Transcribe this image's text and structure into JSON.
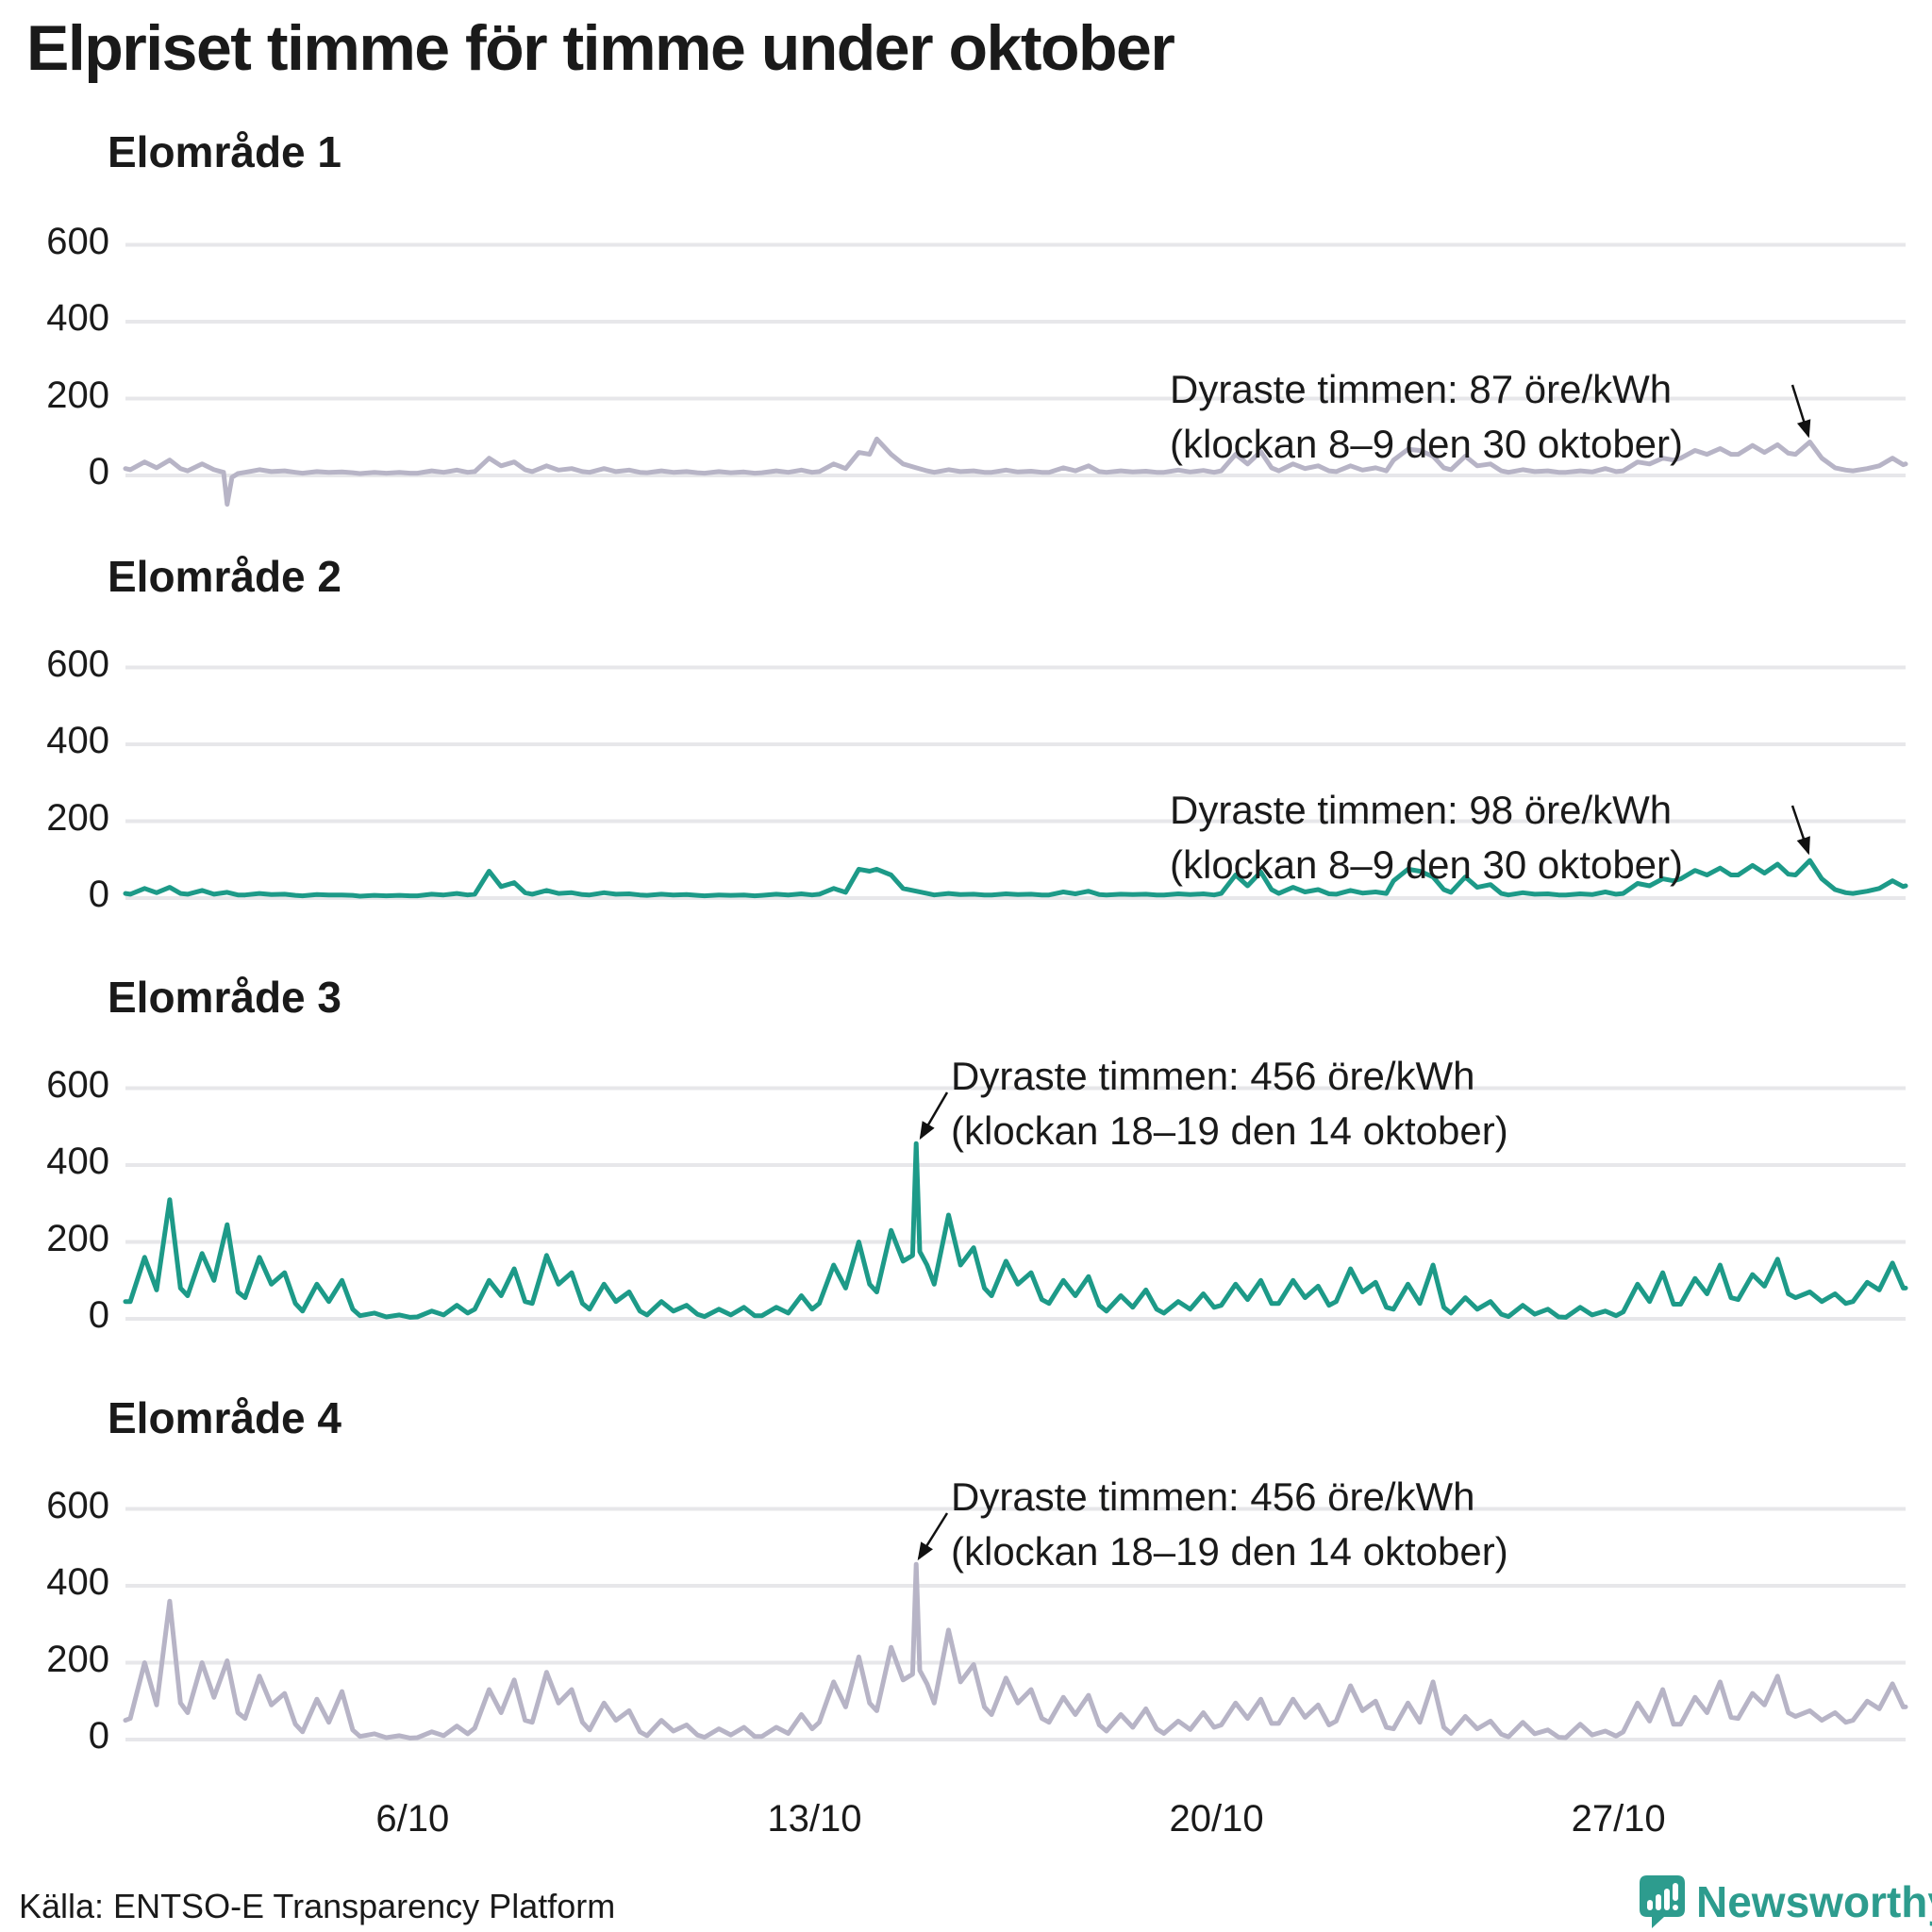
{
  "title": "Elpriset timme för timme under oktober",
  "source": "Källa: ENTSO-E Transparency Platform",
  "logo": {
    "text": "Newsworthy",
    "color": "#2d9c8e",
    "icon": "speech-bubble-bar-chart-icon"
  },
  "colors": {
    "teal_line": "#1d9a88",
    "gray_line": "#b7b4c6",
    "grid": "#e7e7ea",
    "text": "#1a1a1a",
    "arrow": "#111111"
  },
  "y_axis": {
    "ticks": [
      0,
      200,
      400,
      600
    ],
    "tick_labels": [
      "0",
      "200",
      "400",
      "600"
    ],
    "unit": "öre/kWh"
  },
  "x_axis": {
    "range_hours": [
      0,
      744
    ],
    "month": "oktober",
    "ticks": [
      {
        "label": "6/10",
        "hour": 120
      },
      {
        "label": "13/10",
        "hour": 288
      },
      {
        "label": "20/10",
        "hour": 456
      },
      {
        "label": "27/10",
        "hour": 624
      }
    ]
  },
  "chart_data": [
    {
      "type": "line",
      "title": "Elområde 1",
      "color": "#b7b4c6",
      "unit": "öre/kWh",
      "ylim": [
        -100,
        700
      ],
      "max": {
        "value": 87,
        "hours": "8–9",
        "date": "30 oktober"
      },
      "annotation": {
        "line1": "Dyraste timmen: 87 öre/kWh",
        "line2": "(klockan 8–9 den 30 oktober)"
      },
      "sample_hours": [
        2,
        8,
        13,
        18.5,
        23
      ],
      "daily_values": [
        [
          15,
          35,
          20,
          40,
          18
        ],
        [
          12,
          30,
          15,
          -75,
          5
        ],
        [
          8,
          15,
          10,
          12,
          8
        ],
        [
          6,
          10,
          8,
          9,
          7
        ],
        [
          5,
          8,
          6,
          8,
          6
        ],
        [
          6,
          12,
          8,
          14,
          8
        ],
        [
          10,
          45,
          25,
          35,
          15
        ],
        [
          10,
          25,
          14,
          18,
          10
        ],
        [
          8,
          18,
          10,
          14,
          8
        ],
        [
          7,
          12,
          8,
          10,
          7
        ],
        [
          6,
          10,
          7,
          9,
          6
        ],
        [
          7,
          12,
          8,
          14,
          8
        ],
        [
          10,
          30,
          18,
          60,
          55
        ],
        [
          95,
          55,
          30,
          20,
          12
        ],
        [
          8,
          15,
          10,
          12,
          8
        ],
        [
          8,
          14,
          9,
          11,
          8
        ],
        [
          8,
          20,
          12,
          25,
          10
        ],
        [
          8,
          12,
          9,
          11,
          8
        ],
        [
          8,
          14,
          9,
          13,
          8
        ],
        [
          12,
          55,
          30,
          62,
          20
        ],
        [
          12,
          30,
          18,
          25,
          12
        ],
        [
          10,
          25,
          14,
          20,
          12
        ],
        [
          40,
          68,
          65,
          50,
          20
        ],
        [
          15,
          50,
          25,
          30,
          12
        ],
        [
          8,
          15,
          10,
          12,
          8
        ],
        [
          8,
          12,
          9,
          18,
          10
        ],
        [
          12,
          35,
          30,
          45,
          40
        ],
        [
          45,
          65,
          55,
          70,
          55
        ],
        [
          55,
          78,
          60,
          80,
          58
        ],
        [
          55,
          87,
          45,
          20,
          14
        ],
        [
          12,
          18,
          25,
          45,
          28
        ]
      ],
      "extra_points": [
        [
          0,
          18
        ],
        [
          41,
          8
        ],
        [
          44.5,
          -5
        ],
        [
          744,
          30
        ]
      ]
    },
    {
      "type": "line",
      "title": "Elområde 2",
      "color": "#1d9a88",
      "unit": "öre/kWh",
      "ylim": [
        -100,
        700
      ],
      "max": {
        "value": 98,
        "hours": "8–9",
        "date": "30 oktober"
      },
      "annotation": {
        "line1": "Dyraste timmen: 98 öre/kWh",
        "line2": "(klockan 8–9 den 30 oktober)"
      },
      "sample_hours": [
        2,
        8,
        13,
        18.5,
        23
      ],
      "daily_values": [
        [
          10,
          25,
          14,
          28,
          12
        ],
        [
          10,
          20,
          10,
          15,
          8
        ],
        [
          8,
          12,
          9,
          10,
          7
        ],
        [
          6,
          9,
          8,
          8,
          7
        ],
        [
          5,
          7,
          6,
          7,
          6
        ],
        [
          6,
          10,
          8,
          12,
          8
        ],
        [
          10,
          70,
          30,
          40,
          14
        ],
        [
          10,
          20,
          12,
          14,
          9
        ],
        [
          8,
          14,
          10,
          11,
          8
        ],
        [
          7,
          10,
          8,
          9,
          7
        ],
        [
          6,
          8,
          7,
          8,
          6
        ],
        [
          7,
          10,
          8,
          11,
          8
        ],
        [
          10,
          25,
          15,
          75,
          70
        ],
        [
          75,
          60,
          25,
          18,
          12
        ],
        [
          8,
          12,
          9,
          10,
          8
        ],
        [
          8,
          11,
          9,
          10,
          8
        ],
        [
          8,
          16,
          11,
          18,
          9
        ],
        [
          8,
          10,
          9,
          10,
          8
        ],
        [
          8,
          11,
          9,
          11,
          8
        ],
        [
          12,
          60,
          32,
          68,
          22
        ],
        [
          12,
          28,
          16,
          22,
          11
        ],
        [
          10,
          20,
          13,
          16,
          12
        ],
        [
          45,
          75,
          70,
          55,
          22
        ],
        [
          15,
          55,
          28,
          35,
          12
        ],
        [
          8,
          14,
          10,
          11,
          8
        ],
        [
          8,
          11,
          9,
          16,
          10
        ],
        [
          12,
          38,
          32,
          50,
          45
        ],
        [
          50,
          72,
          60,
          78,
          60
        ],
        [
          60,
          85,
          65,
          88,
          62
        ],
        [
          60,
          98,
          50,
          22,
          14
        ],
        [
          12,
          18,
          25,
          45,
          30
        ]
      ],
      "extra_points": [
        [
          0,
          12
        ],
        [
          744,
          32
        ]
      ]
    },
    {
      "type": "line",
      "title": "Elområde 3",
      "color": "#1d9a88",
      "unit": "öre/kWh",
      "ylim": [
        -100,
        700
      ],
      "max": {
        "value": 456,
        "hours": "18–19",
        "date": "14 oktober"
      },
      "annotation": {
        "line1": "Dyraste timmen: 456 öre/kWh",
        "line2": "(klockan 18–19 den 14 oktober)"
      },
      "sample_hours": [
        2,
        8,
        13,
        18.5,
        23
      ],
      "daily_values": [
        [
          45,
          160,
          75,
          310,
          80
        ],
        [
          60,
          170,
          100,
          245,
          70
        ],
        [
          55,
          160,
          90,
          120,
          40
        ],
        [
          20,
          90,
          45,
          100,
          25
        ],
        [
          8,
          15,
          5,
          10,
          4
        ],
        [
          5,
          20,
          10,
          35,
          15
        ],
        [
          25,
          100,
          60,
          130,
          45
        ],
        [
          40,
          165,
          90,
          120,
          40
        ],
        [
          25,
          90,
          45,
          70,
          20
        ],
        [
          10,
          45,
          20,
          35,
          12
        ],
        [
          6,
          25,
          10,
          30,
          8
        ],
        [
          8,
          30,
          15,
          60,
          25
        ],
        [
          40,
          140,
          80,
          200,
          90
        ],
        [
          70,
          230,
          150,
          456,
          140
        ],
        [
          90,
          270,
          140,
          185,
          80
        ],
        [
          60,
          150,
          90,
          120,
          50
        ],
        [
          40,
          100,
          60,
          110,
          35
        ],
        [
          20,
          60,
          30,
          75,
          25
        ],
        [
          15,
          45,
          25,
          65,
          30
        ],
        [
          35,
          90,
          50,
          100,
          40
        ],
        [
          40,
          100,
          55,
          85,
          35
        ],
        [
          45,
          130,
          70,
          95,
          30
        ],
        [
          25,
          90,
          40,
          140,
          30
        ],
        [
          15,
          55,
          25,
          45,
          12
        ],
        [
          6,
          35,
          12,
          25,
          5
        ],
        [
          4,
          30,
          10,
          20,
          8
        ],
        [
          18,
          90,
          45,
          120,
          38
        ],
        [
          38,
          105,
          65,
          140,
          55
        ],
        [
          50,
          115,
          85,
          155,
          65
        ],
        [
          55,
          70,
          45,
          65,
          40
        ],
        [
          45,
          95,
          75,
          145,
          80
        ]
      ],
      "extra_points": [
        [
          0,
          45
        ],
        [
          329,
          165
        ],
        [
          332,
          175
        ],
        [
          744,
          80
        ]
      ]
    },
    {
      "type": "line",
      "title": "Elområde 4",
      "color": "#b7b4c6",
      "unit": "öre/kWh",
      "ylim": [
        -100,
        700
      ],
      "max": {
        "value": 456,
        "hours": "18–19",
        "date": "14 oktober"
      },
      "annotation": {
        "line1": "Dyraste timmen: 456 öre/kWh",
        "line2": "(klockan 18–19 den 14 oktober)"
      },
      "sample_hours": [
        2,
        8,
        13,
        18.5,
        23
      ],
      "daily_values": [
        [
          55,
          200,
          90,
          360,
          95
        ],
        [
          70,
          200,
          110,
          205,
          70
        ],
        [
          55,
          165,
          90,
          120,
          40
        ],
        [
          20,
          105,
          45,
          125,
          25
        ],
        [
          8,
          15,
          5,
          10,
          4
        ],
        [
          5,
          20,
          10,
          35,
          15
        ],
        [
          30,
          130,
          70,
          155,
          50
        ],
        [
          45,
          175,
          95,
          130,
          45
        ],
        [
          25,
          95,
          50,
          75,
          20
        ],
        [
          10,
          50,
          22,
          38,
          12
        ],
        [
          6,
          28,
          12,
          32,
          8
        ],
        [
          8,
          32,
          16,
          65,
          28
        ],
        [
          45,
          150,
          85,
          215,
          95
        ],
        [
          75,
          240,
          155,
          456,
          145
        ],
        [
          95,
          285,
          150,
          195,
          85
        ],
        [
          65,
          160,
          95,
          130,
          55
        ],
        [
          45,
          110,
          65,
          115,
          38
        ],
        [
          22,
          65,
          32,
          80,
          28
        ],
        [
          16,
          48,
          26,
          70,
          32
        ],
        [
          38,
          95,
          55,
          105,
          42
        ],
        [
          42,
          105,
          58,
          90,
          38
        ],
        [
          48,
          140,
          75,
          100,
          32
        ],
        [
          28,
          95,
          45,
          150,
          32
        ],
        [
          16,
          60,
          28,
          48,
          14
        ],
        [
          7,
          45,
          15,
          25,
          6
        ],
        [
          5,
          40,
          12,
          22,
          9
        ],
        [
          20,
          95,
          48,
          130,
          40
        ],
        [
          40,
          110,
          70,
          150,
          58
        ],
        [
          55,
          120,
          90,
          165,
          70
        ],
        [
          60,
          75,
          50,
          70,
          45
        ],
        [
          50,
          100,
          80,
          145,
          85
        ]
      ],
      "extra_points": [
        [
          0,
          50
        ],
        [
          329,
          170
        ],
        [
          332,
          180
        ],
        [
          744,
          85
        ]
      ]
    }
  ]
}
